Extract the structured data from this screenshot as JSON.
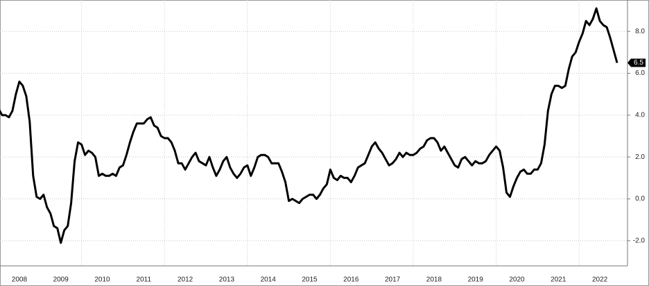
{
  "chart_data": {
    "type": "line",
    "x": [
      "2008-01",
      "2008-02",
      "2008-03",
      "2008-04",
      "2008-05",
      "2008-06",
      "2008-07",
      "2008-08",
      "2008-09",
      "2008-10",
      "2008-11",
      "2008-12",
      "2009-01",
      "2009-02",
      "2009-03",
      "2009-04",
      "2009-05",
      "2009-06",
      "2009-07",
      "2009-08",
      "2009-09",
      "2009-10",
      "2009-11",
      "2009-12",
      "2010-01",
      "2010-02",
      "2010-03",
      "2010-04",
      "2010-05",
      "2010-06",
      "2010-07",
      "2010-08",
      "2010-09",
      "2010-10",
      "2010-11",
      "2010-12",
      "2011-01",
      "2011-02",
      "2011-03",
      "2011-04",
      "2011-05",
      "2011-06",
      "2011-07",
      "2011-08",
      "2011-09",
      "2011-10",
      "2011-11",
      "2011-12",
      "2012-01",
      "2012-02",
      "2012-03",
      "2012-04",
      "2012-05",
      "2012-06",
      "2012-07",
      "2012-08",
      "2012-09",
      "2012-10",
      "2012-11",
      "2012-12",
      "2013-01",
      "2013-02",
      "2013-03",
      "2013-04",
      "2013-05",
      "2013-06",
      "2013-07",
      "2013-08",
      "2013-09",
      "2013-10",
      "2013-11",
      "2013-12",
      "2014-01",
      "2014-02",
      "2014-03",
      "2014-04",
      "2014-05",
      "2014-06",
      "2014-07",
      "2014-08",
      "2014-09",
      "2014-10",
      "2014-11",
      "2014-12",
      "2015-01",
      "2015-02",
      "2015-03",
      "2015-04",
      "2015-05",
      "2015-06",
      "2015-07",
      "2015-08",
      "2015-09",
      "2015-10",
      "2015-11",
      "2015-12",
      "2016-01",
      "2016-02",
      "2016-03",
      "2016-04",
      "2016-05",
      "2016-06",
      "2016-07",
      "2016-08",
      "2016-09",
      "2016-10",
      "2016-11",
      "2016-12",
      "2017-01",
      "2017-02",
      "2017-03",
      "2017-04",
      "2017-05",
      "2017-06",
      "2017-07",
      "2017-08",
      "2017-09",
      "2017-10",
      "2017-11",
      "2017-12",
      "2018-01",
      "2018-02",
      "2018-03",
      "2018-04",
      "2018-05",
      "2018-06",
      "2018-07",
      "2018-08",
      "2018-09",
      "2018-10",
      "2018-11",
      "2018-12",
      "2019-01",
      "2019-02",
      "2019-03",
      "2019-04",
      "2019-05",
      "2019-06",
      "2019-07",
      "2019-08",
      "2019-09",
      "2019-10",
      "2019-11",
      "2019-12",
      "2020-01",
      "2020-02",
      "2020-03",
      "2020-04",
      "2020-05",
      "2020-06",
      "2020-07",
      "2020-08",
      "2020-09",
      "2020-10",
      "2020-11",
      "2020-12",
      "2021-01",
      "2021-02",
      "2021-03",
      "2021-04",
      "2021-05",
      "2021-06",
      "2021-07",
      "2021-08",
      "2021-09",
      "2021-10",
      "2021-11",
      "2021-12",
      "2022-01",
      "2022-02",
      "2022-03",
      "2022-04",
      "2022-05",
      "2022-06",
      "2022-07",
      "2022-08",
      "2022-09",
      "2022-10",
      "2022-11",
      "2022-12"
    ],
    "values": [
      4.3,
      4.0,
      4.0,
      3.9,
      4.2,
      5.0,
      5.6,
      5.4,
      4.9,
      3.7,
      1.1,
      0.1,
      0.0,
      0.2,
      -0.4,
      -0.7,
      -1.3,
      -1.4,
      -2.1,
      -1.5,
      -1.3,
      -0.2,
      1.8,
      2.7,
      2.6,
      2.1,
      2.3,
      2.2,
      2.0,
      1.1,
      1.2,
      1.1,
      1.1,
      1.2,
      1.1,
      1.5,
      1.6,
      2.1,
      2.7,
      3.2,
      3.6,
      3.6,
      3.6,
      3.8,
      3.9,
      3.5,
      3.4,
      3.0,
      2.9,
      2.9,
      2.7,
      2.3,
      1.7,
      1.7,
      1.4,
      1.7,
      2.0,
      2.2,
      1.8,
      1.7,
      1.6,
      2.0,
      1.5,
      1.1,
      1.4,
      1.8,
      2.0,
      1.5,
      1.2,
      1.0,
      1.2,
      1.5,
      1.6,
      1.1,
      1.5,
      2.0,
      2.1,
      2.1,
      2.0,
      1.7,
      1.7,
      1.7,
      1.3,
      0.8,
      -0.1,
      0.0,
      -0.1,
      -0.2,
      0.0,
      0.1,
      0.2,
      0.2,
      0.0,
      0.2,
      0.5,
      0.7,
      1.4,
      1.0,
      0.9,
      1.1,
      1.0,
      1.0,
      0.8,
      1.1,
      1.5,
      1.6,
      1.7,
      2.1,
      2.5,
      2.7,
      2.4,
      2.2,
      1.9,
      1.6,
      1.7,
      1.9,
      2.2,
      2.0,
      2.2,
      2.1,
      2.1,
      2.2,
      2.4,
      2.5,
      2.8,
      2.9,
      2.9,
      2.7,
      2.3,
      2.5,
      2.2,
      1.9,
      1.6,
      1.5,
      1.9,
      2.0,
      1.8,
      1.6,
      1.8,
      1.7,
      1.7,
      1.8,
      2.1,
      2.3,
      2.5,
      2.3,
      1.5,
      0.3,
      0.1,
      0.6,
      1.0,
      1.3,
      1.4,
      1.2,
      1.2,
      1.4,
      1.4,
      1.7,
      2.6,
      4.2,
      5.0,
      5.4,
      5.4,
      5.3,
      5.4,
      6.2,
      6.8,
      7.0,
      7.5,
      7.9,
      8.5,
      8.3,
      8.6,
      9.1,
      8.5,
      8.3,
      8.2,
      7.7,
      7.1,
      6.5
    ],
    "color": "#000000",
    "xticks": [
      "2008",
      "2009",
      "2010",
      "2011",
      "2012",
      "2013",
      "2014",
      "2015",
      "2016",
      "2017",
      "2018",
      "2019",
      "2020",
      "2021",
      "2022"
    ],
    "ylim": [
      -3.2,
      9.5
    ],
    "yticks": [
      {
        "value": -2,
        "label": "-2.0"
      },
      {
        "value": 0,
        "label": "0.0"
      },
      {
        "value": 2,
        "label": "2.0"
      },
      {
        "value": 4,
        "label": "4.0"
      },
      {
        "value": 6,
        "label": "6.0"
      },
      {
        "value": 8,
        "label": "8.0"
      }
    ],
    "grid": true
  }
}
